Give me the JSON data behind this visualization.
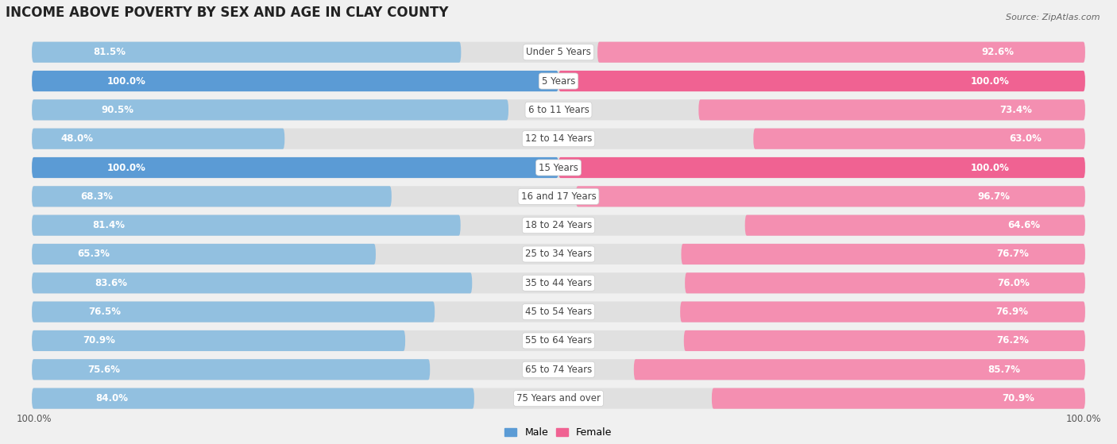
{
  "title": "INCOME ABOVE POVERTY BY SEX AND AGE IN CLAY COUNTY",
  "source": "Source: ZipAtlas.com",
  "categories": [
    "Under 5 Years",
    "5 Years",
    "6 to 11 Years",
    "12 to 14 Years",
    "15 Years",
    "16 and 17 Years",
    "18 to 24 Years",
    "25 to 34 Years",
    "35 to 44 Years",
    "45 to 54 Years",
    "55 to 64 Years",
    "65 to 74 Years",
    "75 Years and over"
  ],
  "male_values": [
    81.5,
    100.0,
    90.5,
    48.0,
    100.0,
    68.3,
    81.4,
    65.3,
    83.6,
    76.5,
    70.9,
    75.6,
    84.0
  ],
  "female_values": [
    92.6,
    100.0,
    73.4,
    63.0,
    100.0,
    96.7,
    64.6,
    76.7,
    76.0,
    76.9,
    76.2,
    85.7,
    70.9
  ],
  "male_color_full": "#5B9BD5",
  "male_color_partial": "#92C0E0",
  "female_color_full": "#F06292",
  "female_color_partial": "#F48FB1",
  "background_color": "#F0F0F0",
  "bar_bg_color": "#E0E0E0",
  "title_fontsize": 12,
  "label_fontsize": 8.5,
  "max_value": 100.0
}
